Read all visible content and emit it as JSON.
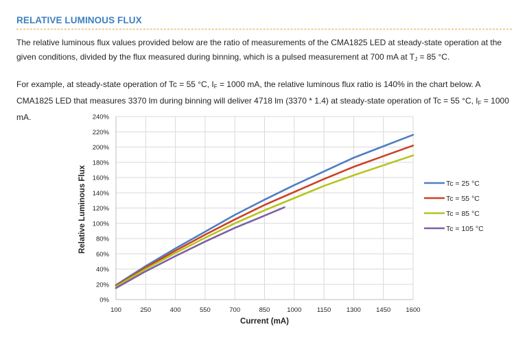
{
  "header": {
    "title": "RELATIVE LUMINOUS FLUX"
  },
  "text": {
    "p1_a": "The relative luminous flux values provided below are the ratio of measurements of the CMA1825 LED at steady-state operation at the given conditions, divided by the flux measured during binning, which is a pulsed measurement at 700 mA at T",
    "p1_sub": "J",
    "p1_b": " = 85 °C.",
    "p2_a": "For example, at steady-state operation of Tc = 55 °C, I",
    "p2_sub1": "F",
    "p2_b": " = 1000 mA, the relative luminous flux ratio is 140% in the chart below. A CMA1825 LED that measures 3370 lm during binning will deliver 4718 lm (3370 * 1.4) at steady-state operation of Tc = 55 °C, I",
    "p2_sub2": "F",
    "p2_c": " = 1000 mA."
  },
  "colors": {
    "accent": "#3e7fbf",
    "rule": "#e4a03a"
  },
  "chart_data": {
    "type": "line",
    "xlabel": "Current (mA)",
    "ylabel": "Relative Luminous Flux",
    "xlim": [
      100,
      1600
    ],
    "ylim": [
      0,
      240
    ],
    "x_ticks": [
      "100",
      "250",
      "400",
      "550",
      "700",
      "850",
      "1000",
      "1150",
      "1300",
      "1450",
      "1600"
    ],
    "y_ticks": [
      "0%",
      "20%",
      "40%",
      "60%",
      "80%",
      "100%",
      "120%",
      "140%",
      "160%",
      "180%",
      "200%",
      "220%",
      "240%"
    ],
    "grid": true,
    "legend_position": "right",
    "series": [
      {
        "name": "Tc = 25 °C",
        "color": "#4e7ec3",
        "x": [
          100,
          250,
          400,
          550,
          700,
          850,
          1000,
          1150,
          1300,
          1450,
          1600
        ],
        "y": [
          19,
          44,
          67,
          89,
          111,
          131,
          150,
          168,
          186,
          201,
          216
        ]
      },
      {
        "name": "Tc = 55 °C",
        "color": "#cc4125",
        "x": [
          100,
          250,
          400,
          550,
          700,
          850,
          1000,
          1150,
          1300,
          1450,
          1600
        ],
        "y": [
          18,
          42,
          64,
          85,
          105,
          124,
          141,
          158,
          174,
          188,
          202
        ]
      },
      {
        "name": "Tc = 85 °C",
        "color": "#b5c41a",
        "x": [
          100,
          250,
          400,
          550,
          700,
          850,
          1000,
          1150,
          1300,
          1450,
          1600
        ],
        "y": [
          17,
          40,
          61,
          81,
          100,
          117,
          133,
          149,
          163,
          176,
          189
        ]
      },
      {
        "name": "Tc = 105 °C",
        "color": "#7e5ea6",
        "x": [
          100,
          250,
          400,
          550,
          700,
          850,
          950
        ],
        "y": [
          15,
          37,
          57,
          76,
          94,
          110,
          121
        ]
      }
    ]
  }
}
